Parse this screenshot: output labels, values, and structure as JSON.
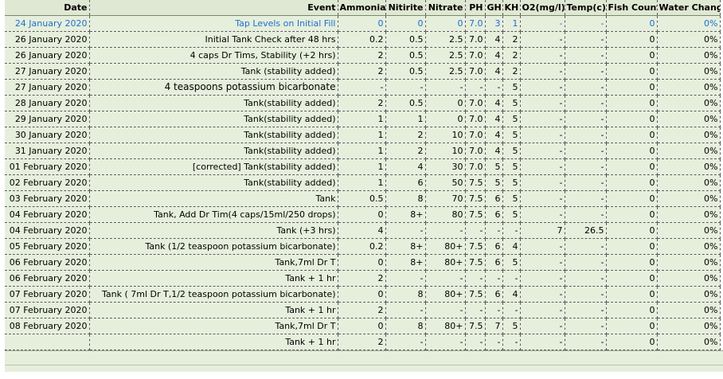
{
  "sheet": {
    "headers": [
      "Date",
      "Event",
      "Ammonia",
      "Nitirite",
      "Nitrate",
      "PH",
      "GH",
      "KH",
      "O2(mg/l)",
      "Temp(c)",
      "Fish Count",
      "Water Change"
    ],
    "rows": [
      [
        "24 January 2020",
        "Tap Levels on Initial Fill",
        "0",
        "0",
        "0",
        "7.0",
        "3",
        "1",
        "-",
        "-",
        "0",
        "0%"
      ],
      [
        "26 January 2020",
        "Initial Tank Check after 48 hrs",
        "0.2",
        "0.5",
        "2.5",
        "7.0",
        "4",
        "2",
        "-",
        "-",
        "0",
        "0%"
      ],
      [
        "26 January 2020",
        "4 caps Dr Tims, Stability (+2 hrs)",
        "2",
        "0.5",
        "2.5",
        "7.0",
        "4",
        "2",
        "-",
        "-",
        "0",
        "0%"
      ],
      [
        "27 January 2020",
        "Tank (stability added)",
        "2",
        "0.5",
        "2.5",
        "7.0",
        "4",
        "2",
        "-",
        "-",
        "0",
        "0%"
      ],
      [
        "27 January 2020",
        "4 teaspoons potassium bicarbonate",
        "-",
        "-",
        "-",
        "-",
        "-",
        "5",
        "-",
        "-",
        "0",
        "0%"
      ],
      [
        "28 January 2020",
        "Tank(stability added)",
        "2",
        "0.5",
        "0",
        "7.0",
        "4",
        "5",
        "-",
        "-",
        "0",
        "0%"
      ],
      [
        "29 January 2020",
        "Tank(stability added)",
        "1",
        "1",
        "0",
        "7.0",
        "4",
        "5",
        "-",
        "-",
        "0",
        "0%"
      ],
      [
        "30 January 2020",
        "Tank(stability added)",
        "1",
        "2",
        "10",
        "7.0",
        "4",
        "5",
        "-",
        "-",
        "0",
        "0%"
      ],
      [
        "31 January 2020",
        "Tank(stability added)",
        "1",
        "2",
        "10",
        "7.0",
        "4",
        "5",
        "-",
        "-",
        "0",
        "0%"
      ],
      [
        "01 February 2020",
        "[corrected] Tank(stability added)",
        "1",
        "4",
        "30",
        "7.0",
        "5",
        "5",
        "-",
        "-",
        "0",
        "0%"
      ],
      [
        "02 February 2020",
        "Tank(stability added)",
        "1",
        "6",
        "50",
        "7.5",
        "5",
        "5",
        "-",
        "-",
        "0",
        "0%"
      ],
      [
        "03 February 2020",
        "Tank",
        "0.5",
        "8",
        "70",
        "7.5",
        "6",
        "5",
        "-",
        "-",
        "0",
        "0%"
      ],
      [
        "04 February 2020",
        "Tank, Add Dr Tim(4 caps/15ml/250 drops)",
        "0",
        "8+",
        "80",
        "7.5",
        "6",
        "5",
        "-",
        "-",
        "0",
        "0%"
      ],
      [
        "04 February 2020",
        "Tank (+3 hrs)",
        "4",
        "-",
        "-",
        "-",
        "-",
        "-",
        "7",
        "26.5",
        "0",
        "0%"
      ],
      [
        "05 February 2020",
        "Tank (1/2 teaspoon potassium bicarbonate)",
        "0.2",
        "8+",
        "80+",
        "7.5",
        "6",
        "4",
        "-",
        "-",
        "0",
        "0%"
      ],
      [
        "06 February 2020",
        "Tank,7ml Dr T",
        "0",
        "8+",
        "80+",
        "7.5",
        "6",
        "5",
        "-",
        "-",
        "0",
        "0%"
      ],
      [
        "06 February 2020",
        "Tank + 1 hr",
        "2",
        "-",
        "-",
        "-",
        "-",
        "-",
        "-",
        "-",
        "0",
        "0%"
      ],
      [
        "07 February 2020",
        "Tank ( 7ml Dr T,1/2 teaspoon potassium bicarbonate)",
        "0",
        "8",
        "80+",
        "7.5",
        "6",
        "4",
        "-",
        "-",
        "0",
        "0%"
      ],
      [
        "07 February 2020",
        "Tank + 1 hr",
        "2",
        "-",
        "-",
        "-",
        "-",
        "-",
        "-",
        "-",
        "0",
        "0%"
      ],
      [
        "08 February 2020",
        "Tank,7ml Dr T",
        "0",
        "8",
        "80+",
        "7.5",
        "7",
        "5",
        "-",
        "-",
        "0",
        "0%"
      ],
      [
        "",
        "Tank + 1 hr",
        "2",
        "-",
        "-",
        "-",
        "-",
        "-",
        "-",
        "-",
        "0",
        "0%"
      ]
    ]
  }
}
